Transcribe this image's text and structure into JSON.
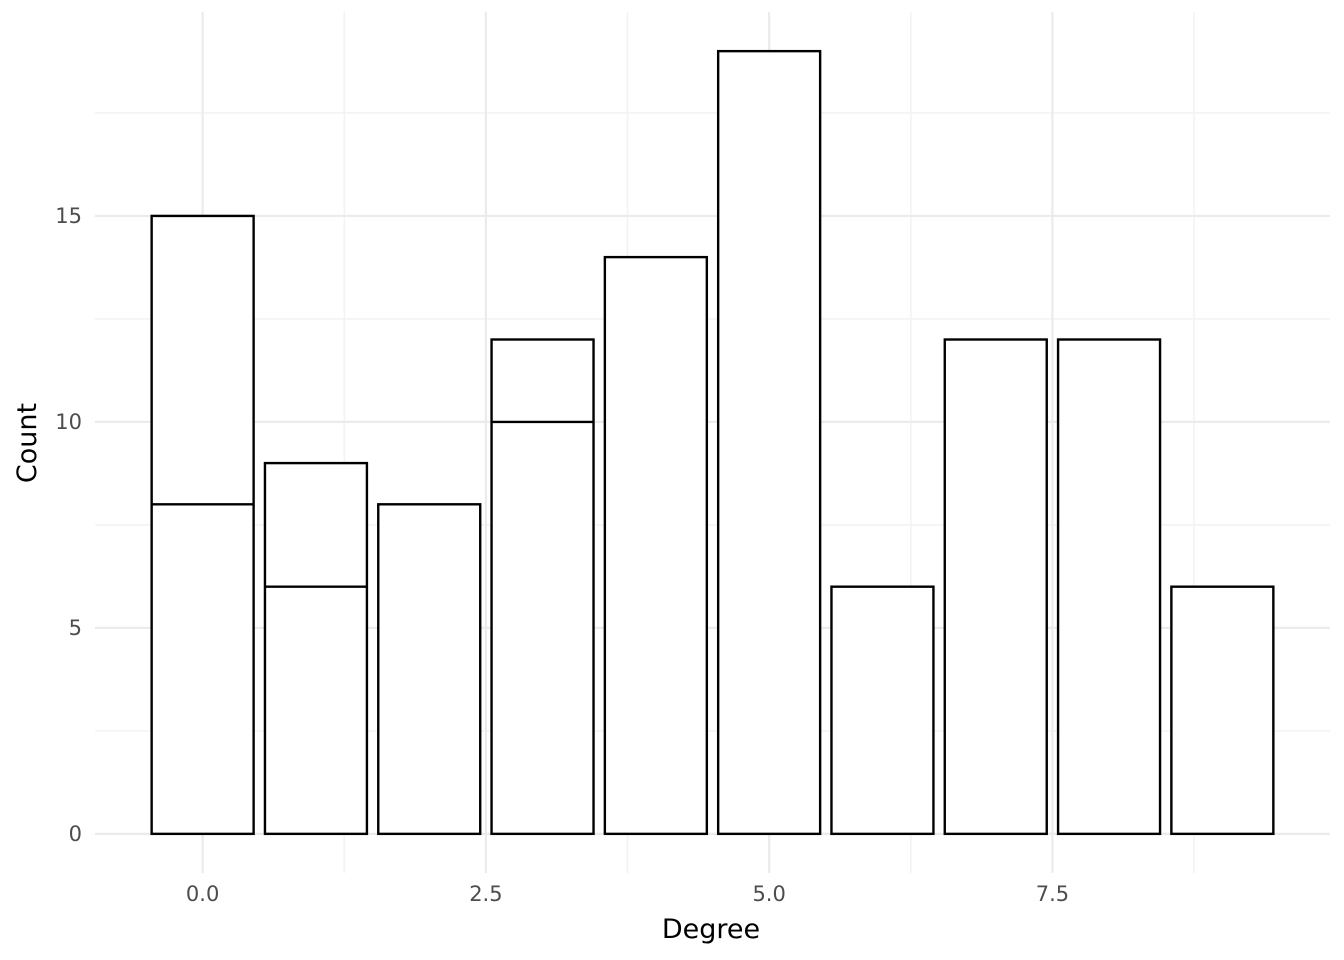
{
  "chart_data": {
    "type": "bar",
    "title": "",
    "xlabel": "Degree",
    "ylabel": "Count",
    "x": [
      0,
      1,
      2,
      3,
      4,
      5,
      6,
      7,
      8,
      9
    ],
    "values": [
      15,
      9,
      8,
      12,
      14,
      19,
      6,
      12,
      12,
      6
    ],
    "inner_dividers": [
      {
        "x": 0,
        "at": 8
      },
      {
        "x": 1,
        "at": 6
      },
      {
        "x": 3,
        "at": 10
      }
    ],
    "xlim": [
      -0.95,
      9.95
    ],
    "ylim": [
      -0.95,
      19.95
    ],
    "x_ticks": [
      0,
      2.5,
      5,
      7.5
    ],
    "x_tick_labels": [
      "0.0",
      "2.5",
      "5.0",
      "7.5"
    ],
    "y_ticks": [
      0,
      5,
      10,
      15
    ],
    "y_tick_labels": [
      "0",
      "5",
      "10",
      "15"
    ],
    "grid": true,
    "bar_fill": "#ffffff",
    "bar_outline": "#000000"
  }
}
